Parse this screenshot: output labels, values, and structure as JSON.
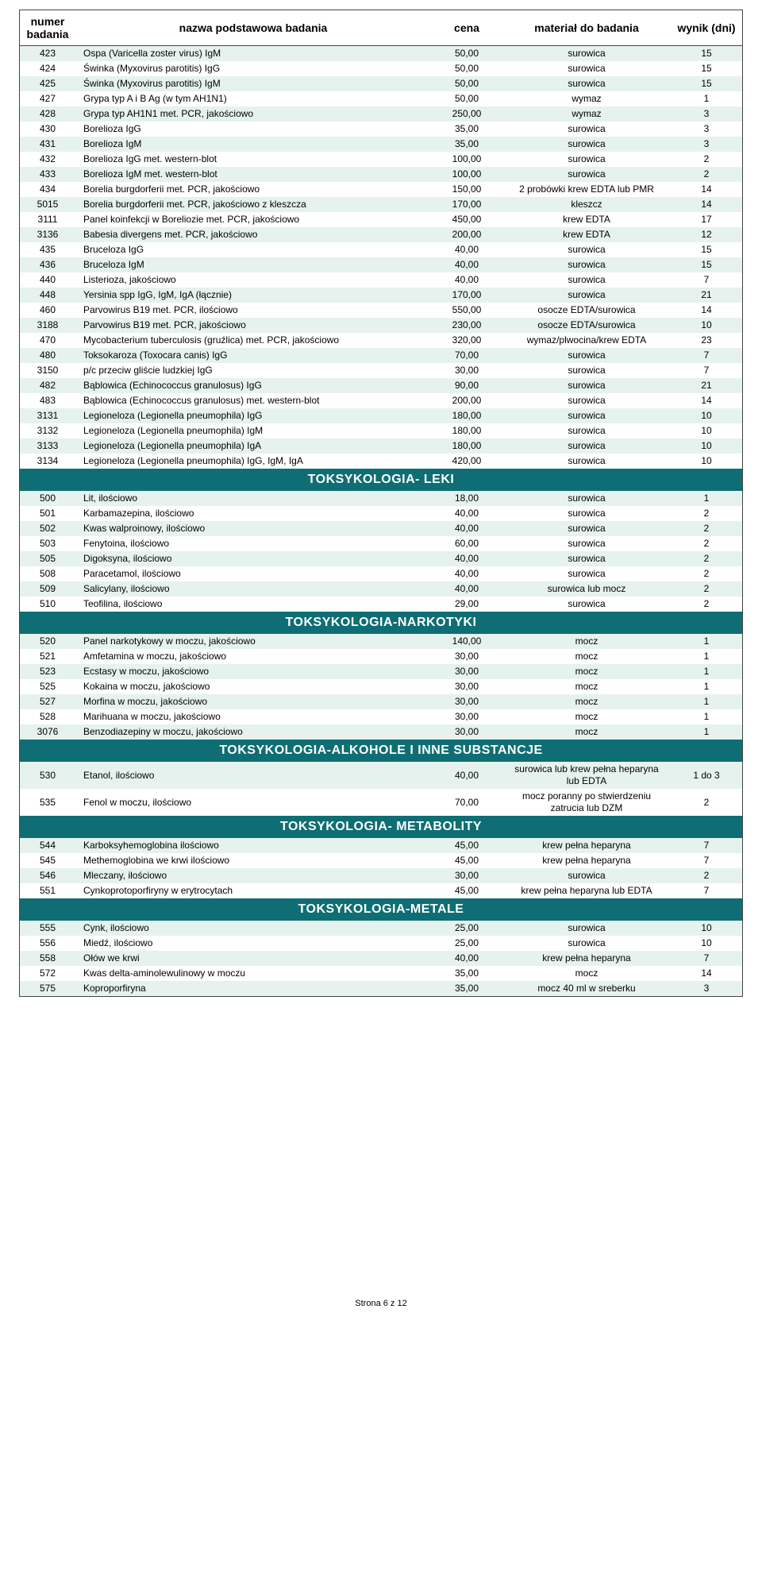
{
  "header": {
    "col_num_l1": "numer",
    "col_num_l2": "badania",
    "col_name": "nazwa podstawowa badania",
    "col_price": "cena",
    "col_material": "materiał do badania",
    "col_days": "wynik (dni)"
  },
  "colors": {
    "section_bg": "#0e6e73",
    "section_fg": "#ffffff",
    "row_alt_bg": "#e6f2ee",
    "row_bg": "#ffffff",
    "border": "#444444",
    "text": "#000000"
  },
  "font": {
    "family": "Arial",
    "size_pt": 9,
    "header_size_pt": 11,
    "section_size_pt": 12
  },
  "sections": [
    {
      "title": null,
      "rows": [
        {
          "num": "423",
          "name": "Ospa (Varicella zoster virus) IgM",
          "price": "50,00",
          "mat": "surowica",
          "days": "15"
        },
        {
          "num": "424",
          "name": "Świnka (Myxovirus parotitis) IgG",
          "price": "50,00",
          "mat": "surowica",
          "days": "15"
        },
        {
          "num": "425",
          "name": "Świnka (Myxovirus parotitis) IgM",
          "price": "50,00",
          "mat": "surowica",
          "days": "15"
        },
        {
          "num": "427",
          "name": "Grypa typ A i B Ag (w tym AH1N1)",
          "price": "50,00",
          "mat": "wymaz",
          "days": "1"
        },
        {
          "num": "428",
          "name": "Grypa typ AH1N1 met. PCR, jakościowo",
          "price": "250,00",
          "mat": "wymaz",
          "days": "3"
        },
        {
          "num": "430",
          "name": "Borelioza IgG",
          "price": "35,00",
          "mat": "surowica",
          "days": "3"
        },
        {
          "num": "431",
          "name": "Borelioza IgM",
          "price": "35,00",
          "mat": "surowica",
          "days": "3"
        },
        {
          "num": "432",
          "name": "Borelioza IgG met. western-blot",
          "price": "100,00",
          "mat": "surowica",
          "days": "2"
        },
        {
          "num": "433",
          "name": "Borelioza IgM met. western-blot",
          "price": "100,00",
          "mat": "surowica",
          "days": "2"
        },
        {
          "num": "434",
          "name": "Borelia burgdorferii met. PCR, jakościowo",
          "price": "150,00",
          "mat": "2 probówki krew EDTA lub PMR",
          "days": "14"
        },
        {
          "num": "5015",
          "name": "Borelia burgdorferii met. PCR, jakościowo z kleszcza",
          "price": "170,00",
          "mat": "kleszcz",
          "days": "14"
        },
        {
          "num": "3111",
          "name": "Panel koinfekcji w Boreliozie met. PCR, jakościowo",
          "price": "450,00",
          "mat": "krew EDTA",
          "days": "17"
        },
        {
          "num": "3136",
          "name": "Babesia divergens met. PCR, jakościowo",
          "price": "200,00",
          "mat": "krew EDTA",
          "days": "12"
        },
        {
          "num": "435",
          "name": "Bruceloza IgG",
          "price": "40,00",
          "mat": "surowica",
          "days": "15"
        },
        {
          "num": "436",
          "name": "Bruceloza IgM",
          "price": "40,00",
          "mat": "surowica",
          "days": "15"
        },
        {
          "num": "440",
          "name": "Listerioza, jakościowo",
          "price": "40,00",
          "mat": "surowica",
          "days": "7"
        },
        {
          "num": "448",
          "name": "Yersinia spp IgG, IgM, IgA (łącznie)",
          "price": "170,00",
          "mat": "surowica",
          "days": "21"
        },
        {
          "num": "460",
          "name": "Parvowirus B19 met. PCR, ilościowo",
          "price": "550,00",
          "mat": "osocze EDTA/surowica",
          "days": "14"
        },
        {
          "num": "3188",
          "name": "Parvowirus B19 met. PCR, jakościowo",
          "price": "230,00",
          "mat": "osocze EDTA/surowica",
          "days": "10"
        },
        {
          "num": "470",
          "name": "Mycobacterium tuberculosis (gruźlica) met. PCR, jakościowo",
          "price": "320,00",
          "mat": "wymaz/plwocina/krew EDTA",
          "days": "23"
        },
        {
          "num": "480",
          "name": "Toksokaroza (Toxocara canis)  IgG",
          "price": "70,00",
          "mat": "surowica",
          "days": "7"
        },
        {
          "num": "3150",
          "name": "p/c przeciw gliście ludzkiej IgG",
          "price": "30,00",
          "mat": "surowica",
          "days": "7"
        },
        {
          "num": "482",
          "name": "Bąblowica (Echinococcus granulosus) IgG",
          "price": "90,00",
          "mat": "surowica",
          "days": "21"
        },
        {
          "num": "483",
          "name": "Bąblowica (Echinococcus granulosus) met. western-blot",
          "price": "200,00",
          "mat": "surowica",
          "days": "14"
        },
        {
          "num": "3131",
          "name": "Legioneloza (Legionella pneumophila) IgG",
          "price": "180,00",
          "mat": "surowica",
          "days": "10"
        },
        {
          "num": "3132",
          "name": "Legioneloza (Legionella pneumophila) IgM",
          "price": "180,00",
          "mat": "surowica",
          "days": "10"
        },
        {
          "num": "3133",
          "name": "Legioneloza (Legionella pneumophila) IgA",
          "price": "180,00",
          "mat": "surowica",
          "days": "10"
        },
        {
          "num": "3134",
          "name": "Legioneloza (Legionella pneumophila) IgG, IgM, IgA",
          "price": "420,00",
          "mat": "surowica",
          "days": "10"
        }
      ]
    },
    {
      "title": "TOKSYKOLOGIA-  LEKI",
      "rows": [
        {
          "num": "500",
          "name": "Lit, ilościowo",
          "price": "18,00",
          "mat": "surowica",
          "days": "1"
        },
        {
          "num": "501",
          "name": "Karbamazepina, ilościowo",
          "price": "40,00",
          "mat": "surowica",
          "days": "2"
        },
        {
          "num": "502",
          "name": "Kwas walproinowy, ilościowo",
          "price": "40,00",
          "mat": "surowica",
          "days": "2"
        },
        {
          "num": "503",
          "name": "Fenytoina, ilościowo",
          "price": "60,00",
          "mat": "surowica",
          "days": "2"
        },
        {
          "num": "505",
          "name": "Digoksyna, ilościowo",
          "price": "40,00",
          "mat": "surowica",
          "days": "2"
        },
        {
          "num": "508",
          "name": "Paracetamol, ilościowo",
          "price": "40,00",
          "mat": "surowica",
          "days": "2"
        },
        {
          "num": "509",
          "name": "Salicylany, ilościowo",
          "price": "40,00",
          "mat": "surowica lub mocz",
          "days": "2"
        },
        {
          "num": "510",
          "name": "Teofilina, ilościowo",
          "price": "29,00",
          "mat": "surowica",
          "days": "2"
        }
      ]
    },
    {
      "title": "TOKSYKOLOGIA-NARKOTYKI",
      "rows": [
        {
          "num": "520",
          "name": "Panel narkotykowy w moczu, jakościowo",
          "price": "140,00",
          "mat": "mocz",
          "days": "1"
        },
        {
          "num": "521",
          "name": "Amfetamina w moczu, jakościowo",
          "price": "30,00",
          "mat": "mocz",
          "days": "1"
        },
        {
          "num": "523",
          "name": "Ecstasy w moczu, jakościowo",
          "price": "30,00",
          "mat": "mocz",
          "days": "1"
        },
        {
          "num": "525",
          "name": "Kokaina w moczu, jakościowo",
          "price": "30,00",
          "mat": "mocz",
          "days": "1"
        },
        {
          "num": "527",
          "name": "Morfina w moczu, jakościowo",
          "price": "30,00",
          "mat": "mocz",
          "days": "1"
        },
        {
          "num": "528",
          "name": "Marihuana w moczu, jakościowo",
          "price": "30,00",
          "mat": "mocz",
          "days": "1"
        },
        {
          "num": "3076",
          "name": "Benzodiazepiny w moczu, jakościowo",
          "price": "30,00",
          "mat": "mocz",
          "days": "1"
        }
      ]
    },
    {
      "title": "TOKSYKOLOGIA-ALKOHOLE I INNE SUBSTANCJE",
      "rows": [
        {
          "num": "530",
          "name": "Etanol, ilościowo",
          "price": "40,00",
          "mat": "surowica lub krew pełna heparyna lub  EDTA",
          "days": "1 do 3"
        },
        {
          "num": "535",
          "name": "Fenol w moczu, ilościowo",
          "price": "70,00",
          "mat": "mocz poranny po stwierdzeniu zatrucia  lub DZM",
          "days": "2"
        }
      ]
    },
    {
      "title": "TOKSYKOLOGIA- METABOLITY",
      "rows": [
        {
          "num": "544",
          "name": "Karboksyhemoglobina ilościowo",
          "price": "45,00",
          "mat": "krew pełna heparyna",
          "days": "7"
        },
        {
          "num": "545",
          "name": "Methemoglobina we krwi ilościowo",
          "price": "45,00",
          "mat": "krew pełna heparyna",
          "days": "7"
        },
        {
          "num": "546",
          "name": "Mleczany, ilościowo",
          "price": "30,00",
          "mat": "surowica",
          "days": "2"
        },
        {
          "num": "551",
          "name": "Cynkoprotoporfiryny w erytrocytach",
          "price": "45,00",
          "mat": "krew pełna heparyna lub EDTA",
          "days": "7"
        }
      ]
    },
    {
      "title": "TOKSYKOLOGIA-METALE",
      "rows": [
        {
          "num": "555",
          "name": "Cynk, ilościowo",
          "price": "25,00",
          "mat": "surowica",
          "days": "10"
        },
        {
          "num": "556",
          "name": "Miedź, ilościowo",
          "price": "25,00",
          "mat": "surowica",
          "days": "10"
        },
        {
          "num": "558",
          "name": "Ołów we krwi",
          "price": "40,00",
          "mat": "krew pełna heparyna",
          "days": "7"
        },
        {
          "num": "572",
          "name": "Kwas delta-aminolewulinowy w moczu",
          "price": "35,00",
          "mat": "mocz",
          "days": "14"
        },
        {
          "num": "575",
          "name": "Koproporfiryna",
          "price": "35,00",
          "mat": "mocz 40 ml w sreberku",
          "days": "3"
        }
      ]
    }
  ],
  "footer": "Strona 6 z 12"
}
